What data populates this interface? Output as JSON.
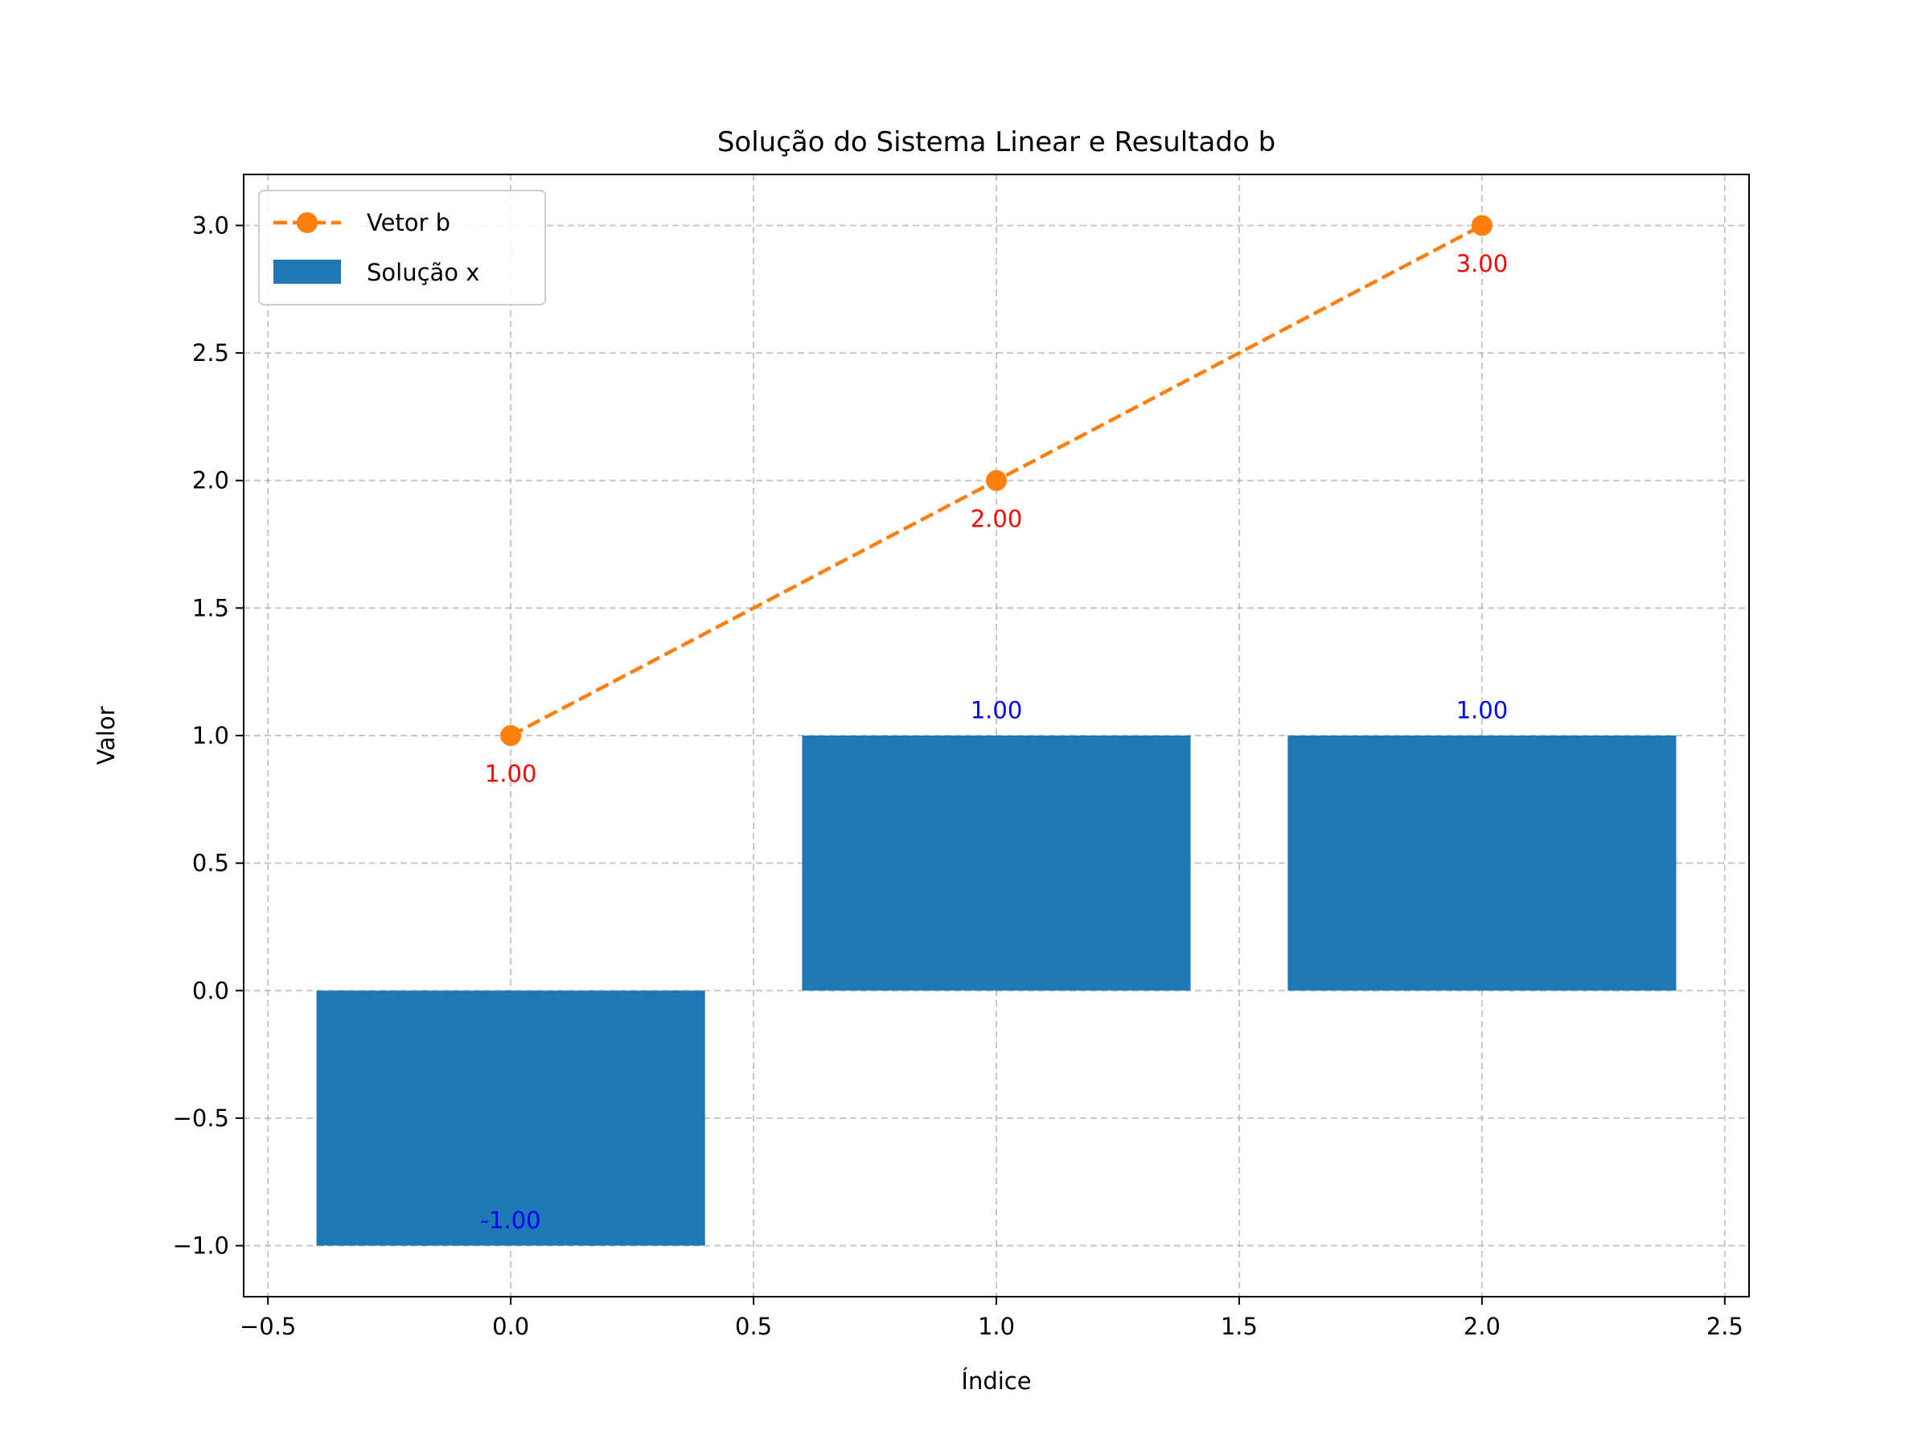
{
  "chart_data": {
    "type": "bar",
    "title": "Solução do Sistema Linear e Resultado b",
    "xlabel": "Índice",
    "ylabel": "Valor",
    "xlim": [
      -0.55,
      2.55
    ],
    "ylim": [
      -1.2,
      3.2
    ],
    "x_ticks": [
      -0.5,
      0.0,
      0.5,
      1.0,
      1.5,
      2.0,
      2.5
    ],
    "x_tick_labels": [
      "−0.5",
      "0.0",
      "0.5",
      "1.0",
      "1.5",
      "2.0",
      "2.5"
    ],
    "y_ticks": [
      -1.0,
      -0.5,
      0.0,
      0.5,
      1.0,
      1.5,
      2.0,
      2.5,
      3.0
    ],
    "y_tick_labels": [
      "−1.0",
      "−0.5",
      "0.0",
      "0.5",
      "1.0",
      "1.5",
      "2.0",
      "2.5",
      "3.0"
    ],
    "grid": true,
    "legend_position": "top-left",
    "series": [
      {
        "name": "Solução x",
        "type": "bar",
        "x": [
          0,
          1,
          2
        ],
        "values": [
          -1.0,
          1.0,
          1.0
        ],
        "bar_width": 0.8,
        "color": "#1f77b4",
        "labels": [
          "-1.00",
          "1.00",
          "1.00"
        ],
        "label_color": "#0000ff"
      },
      {
        "name": "Vetor b",
        "type": "line",
        "style": "dashed",
        "marker": "circle",
        "x": [
          0,
          1,
          2
        ],
        "values": [
          1.0,
          2.0,
          3.0
        ],
        "color": "#ff7f0e",
        "labels": [
          "1.00",
          "2.00",
          "3.00"
        ],
        "label_color": "#ff0000"
      }
    ]
  }
}
